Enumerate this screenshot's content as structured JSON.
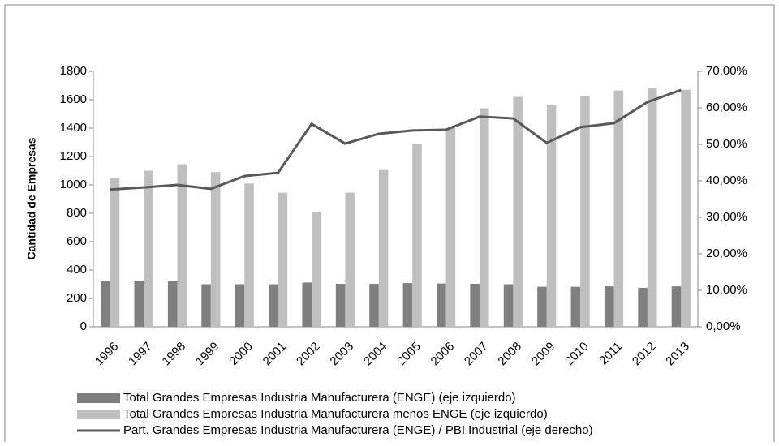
{
  "chart_data": {
    "type": "bar",
    "y_label": "Cantidad de Empresas",
    "categories": [
      "1996",
      "1997",
      "1998",
      "1999",
      "2000",
      "2001",
      "2002",
      "2003",
      "2004",
      "2005",
      "2006",
      "2007",
      "2008",
      "2009",
      "2010",
      "2011",
      "2012",
      "2013"
    ],
    "series": [
      {
        "name": "Total Grandes Empresas Industria Manufacturera (ENGE) (eje izquierdo)",
        "color": "#7f7f7f",
        "type": "bar",
        "values": [
          320,
          325,
          320,
          300,
          300,
          300,
          312,
          303,
          303,
          308,
          305,
          303,
          300,
          282,
          282,
          285,
          275,
          285
        ]
      },
      {
        "name": "Total Grandes Empresas Industria Manufacturera menos ENGE (eje izquierdo)",
        "color": "#bfbfbf",
        "type": "bar",
        "values": [
          1050,
          1100,
          1145,
          1090,
          1010,
          945,
          810,
          945,
          1105,
          1290,
          1400,
          1540,
          1620,
          1560,
          1625,
          1665,
          1685,
          1670
        ]
      },
      {
        "name": "Part. Grandes Empresas Industria Manufacturera (ENGE) / PBI Industrial (eje derecho)",
        "color": "#595959",
        "type": "line",
        "axis": "y2",
        "values": [
          37.6,
          38.2,
          38.9,
          37.8,
          41.3,
          42.2,
          55.6,
          50.2,
          52.9,
          53.8,
          54.0,
          57.6,
          57.1,
          50.4,
          54.7,
          55.8,
          61.6,
          64.9
        ]
      }
    ],
    "ylim": [
      0,
      1800
    ],
    "yticks": [
      0,
      200,
      400,
      600,
      800,
      1000,
      1200,
      1400,
      1600,
      1800
    ],
    "y2lim": [
      0,
      70
    ],
    "y2ticks": [
      {
        "value": 0,
        "label": "0,00%"
      },
      {
        "value": 10,
        "label": "10,00%"
      },
      {
        "value": 20,
        "label": "20,00%"
      },
      {
        "value": 30,
        "label": "30,00%"
      },
      {
        "value": 40,
        "label": "40,00%"
      },
      {
        "value": 50,
        "label": "50,00%"
      },
      {
        "value": 60,
        "label": "60,00%"
      },
      {
        "value": 70,
        "label": "70,00%"
      }
    ],
    "legend": "bottom"
  }
}
